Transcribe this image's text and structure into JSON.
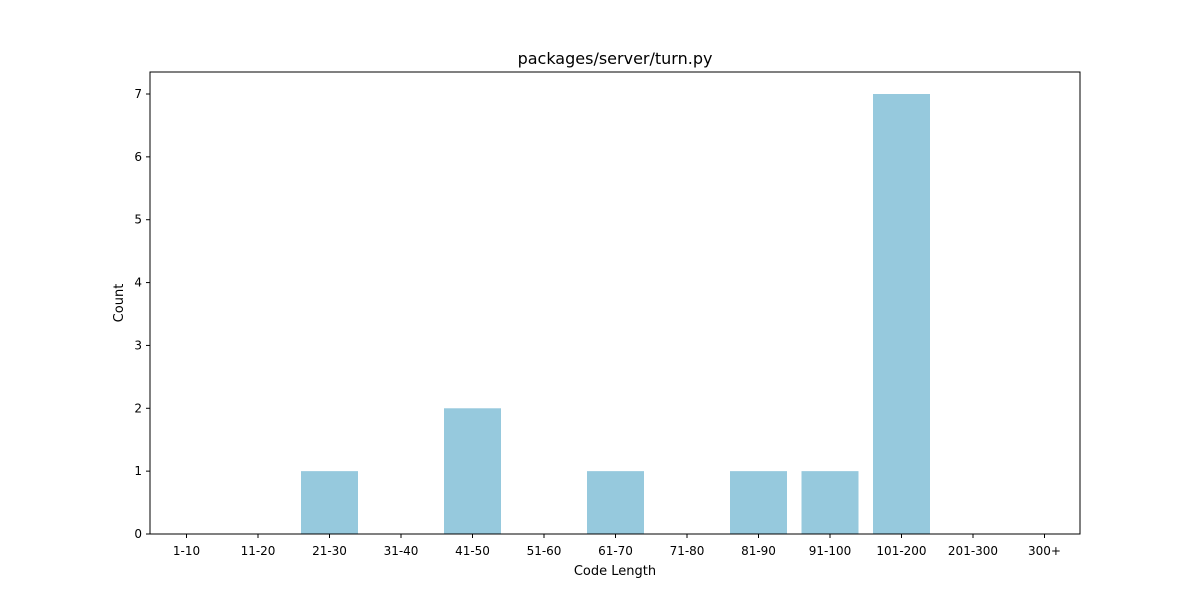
{
  "chart_data": {
    "type": "bar",
    "title": "packages/server/turn.py",
    "xlabel": "Code Length",
    "ylabel": "Count",
    "categories": [
      "1-10",
      "11-20",
      "21-30",
      "31-40",
      "41-50",
      "51-60",
      "61-70",
      "71-80",
      "81-90",
      "91-100",
      "101-200",
      "201-300",
      "300+"
    ],
    "values": [
      0,
      0,
      1,
      0,
      2,
      0,
      1,
      0,
      1,
      1,
      7,
      0,
      0
    ],
    "ylim": [
      0,
      7.35
    ],
    "yticks": [
      0,
      1,
      2,
      3,
      4,
      5,
      6,
      7
    ],
    "bar_color": "#96c9dd",
    "grid": false,
    "legend": "none"
  }
}
